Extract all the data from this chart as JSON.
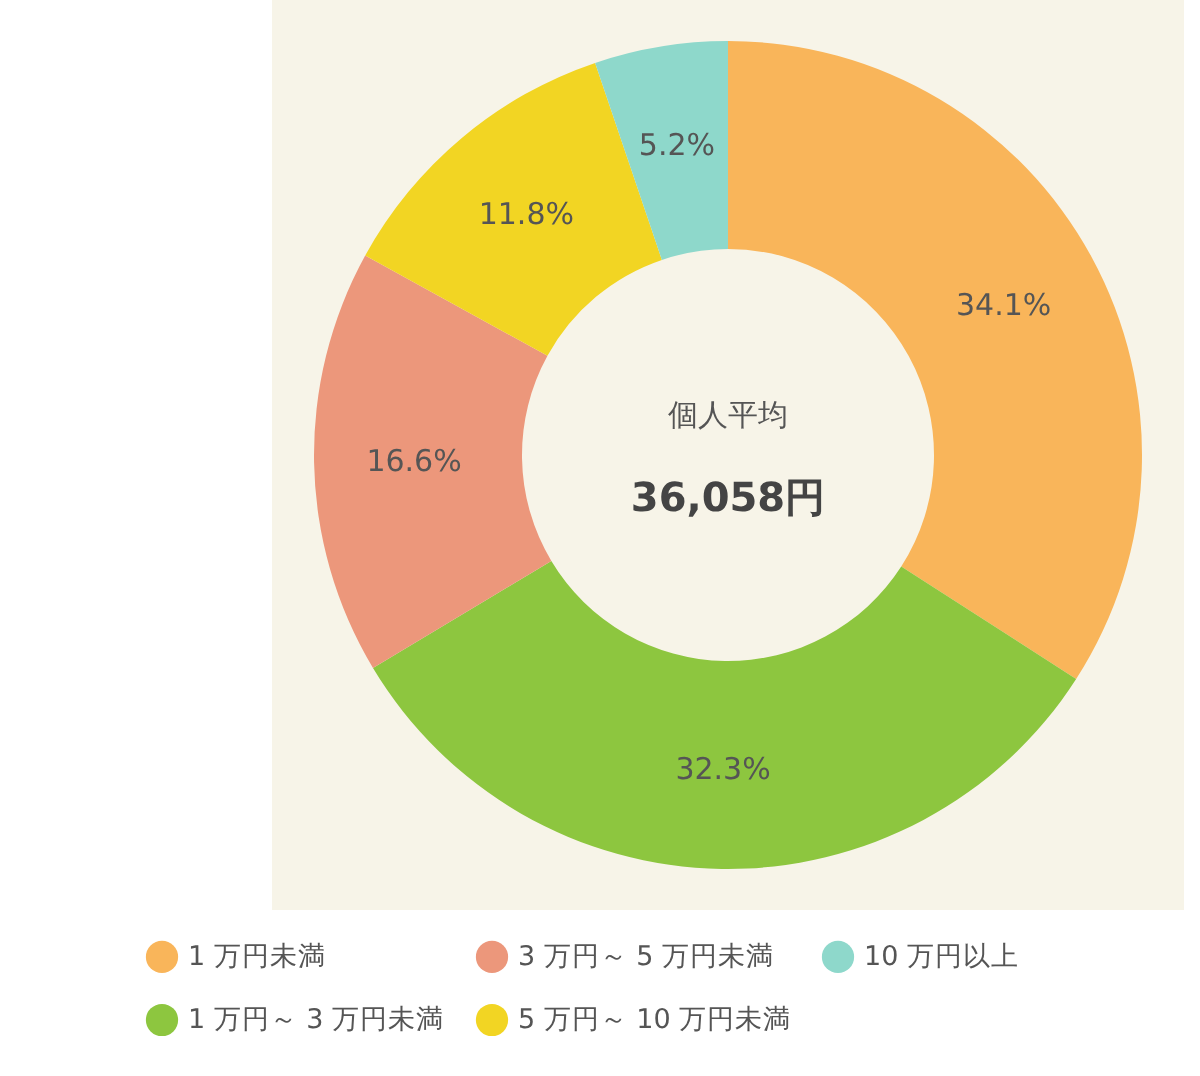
{
  "chart_data": {
    "type": "donut",
    "categories": [
      "1 万円未満",
      "1 万円～ 3 万円未満",
      "3 万円～ 5 万円未満",
      "5 万円～ 10 万円未満",
      "10 万円以上"
    ],
    "values": [
      34.1,
      32.3,
      16.6,
      11.8,
      5.2
    ],
    "colors": [
      "#f9b55a",
      "#8dc63f",
      "#ec977b",
      "#f2d523",
      "#8ed8cb"
    ],
    "value_labels": [
      "34.1%",
      "32.3%",
      "16.6%",
      "11.8%",
      "5.2%"
    ],
    "annotations": [
      "個人平均",
      "36,058円"
    ],
    "legend": "bottom"
  }
}
